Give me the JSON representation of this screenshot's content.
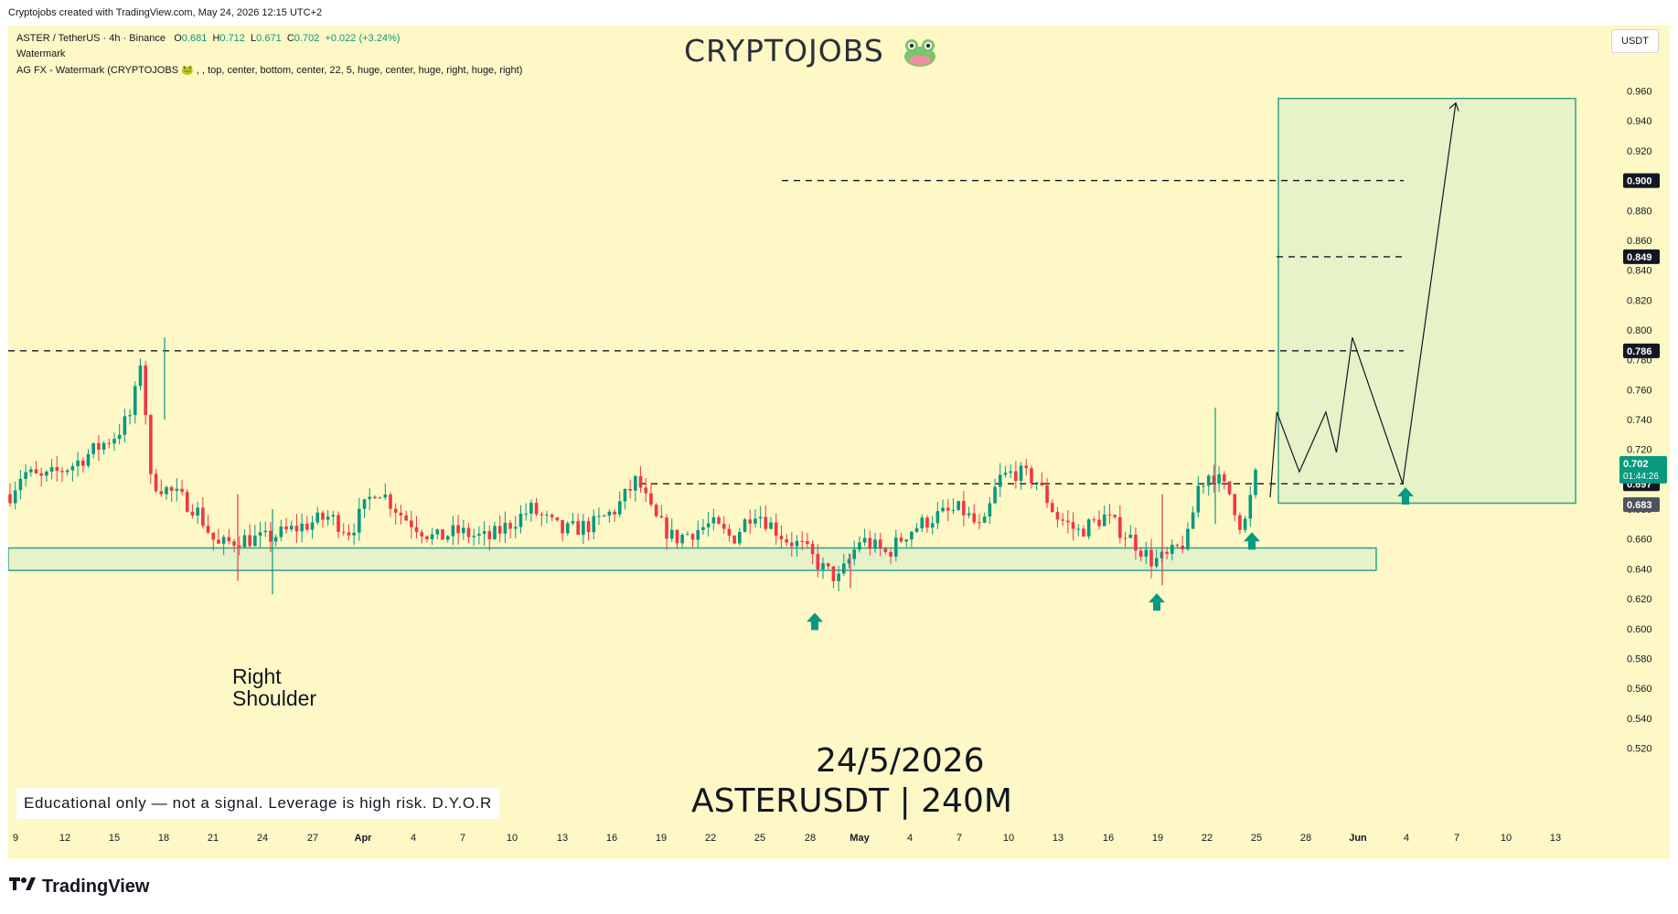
{
  "header": {
    "attribution": "Cryptojobs created with TradingView.com, May 24, 2026 12:15 UTC+2"
  },
  "legend": {
    "symbol_line": "ASTER / TetherUS · 4h · Binance",
    "open_label": "O",
    "open": "0.681",
    "high_label": "H",
    "high": "0.712",
    "low_label": "L",
    "low": "0.671",
    "close_label": "C",
    "close": "0.702",
    "change": "+0.022 (+3.24%)",
    "indicator1": "Watermark",
    "indicator2": "AG FX - Watermark (CRYPTOJOBS 🐸 , , top, center, bottom, center, 22, 5, huge, center, huge, right, huge, right)"
  },
  "watermark": {
    "title": "CRYPTOJOBS"
  },
  "currency_button": "USDT",
  "annotations": {
    "right_shoulder_line1": "Right",
    "right_shoulder_line2": "Shoulder",
    "date": "24/5/2026",
    "symbol_tf": "ASTERUSDT | 240M",
    "disclaimer": "Educational only — not a signal. Leverage is high risk. D.Y.O.R"
  },
  "price_badges": {
    "last_price": "0.702",
    "countdown": "01:44:26",
    "level_0900": "0.900",
    "level_0849": "0.849",
    "level_0786": "0.786",
    "level_0697": "0.697",
    "level_0683": "0.683"
  },
  "footer": {
    "brand": "TradingView"
  },
  "colors": {
    "background": "#fdf8c6",
    "up_candle": "#089981",
    "down_candle": "#f23645",
    "zone_fill": "#e6f2c8",
    "zone_border": "#2fa38c",
    "badge_green": "#089981",
    "badge_black": "#131722",
    "badge_gray": "#4e535e"
  },
  "chart_data": {
    "type": "candlestick",
    "symbol": "ASTERUSDT",
    "timeframe": "4h",
    "y_ticks": [
      "0.960",
      "0.940",
      "0.920",
      "0.900",
      "0.880",
      "0.860",
      "0.840",
      "0.820",
      "0.800",
      "0.780",
      "0.760",
      "0.740",
      "0.720",
      "0.700",
      "0.680",
      "0.660",
      "0.640",
      "0.620",
      "0.600",
      "0.580",
      "0.560",
      "0.540",
      "0.520"
    ],
    "ylim": [
      0.51,
      0.965
    ],
    "x_ticks": [
      "9",
      "12",
      "15",
      "18",
      "21",
      "24",
      "27",
      "Apr",
      "4",
      "7",
      "10",
      "13",
      "16",
      "19",
      "22",
      "25",
      "28",
      "May",
      "4",
      "7",
      "10",
      "13",
      "16",
      "19",
      "22",
      "25",
      "28",
      "Jun",
      "4",
      "7",
      "10",
      "13"
    ],
    "bold_x_ticks": [
      "Apr",
      "May",
      "Jun"
    ],
    "support_zone": [
      0.639,
      0.654
    ],
    "levels": [
      0.9,
      0.849,
      0.786,
      0.697
    ],
    "target_box": {
      "top": 0.955,
      "bottom": 0.684
    },
    "projection_path": [
      [
        0,
        0.688
      ],
      [
        5,
        0.745
      ],
      [
        22,
        0.705
      ],
      [
        42,
        0.745
      ],
      [
        50,
        0.718
      ],
      [
        62,
        0.795
      ],
      [
        100,
        0.697
      ],
      [
        140,
        0.952
      ]
    ],
    "price_path_keypoints": [
      [
        0,
        0.69
      ],
      [
        12,
        0.705
      ],
      [
        30,
        0.7
      ],
      [
        60,
        0.71
      ],
      [
        80,
        0.72
      ],
      [
        100,
        0.73
      ],
      [
        115,
        0.745
      ],
      [
        125,
        0.79
      ],
      [
        130,
        0.7
      ],
      [
        155,
        0.69
      ],
      [
        175,
        0.68
      ],
      [
        195,
        0.655
      ],
      [
        215,
        0.66
      ],
      [
        240,
        0.66
      ],
      [
        260,
        0.665
      ],
      [
        300,
        0.675
      ],
      [
        320,
        0.665
      ],
      [
        345,
        0.695
      ],
      [
        370,
        0.675
      ],
      [
        400,
        0.66
      ],
      [
        420,
        0.665
      ],
      [
        450,
        0.66
      ],
      [
        470,
        0.67
      ],
      [
        490,
        0.68
      ],
      [
        520,
        0.665
      ],
      [
        550,
        0.67
      ],
      [
        570,
        0.68
      ],
      [
        590,
        0.7
      ],
      [
        605,
        0.675
      ],
      [
        625,
        0.66
      ],
      [
        660,
        0.67
      ],
      [
        680,
        0.66
      ],
      [
        700,
        0.68
      ],
      [
        730,
        0.66
      ],
      [
        745,
        0.655
      ],
      [
        765,
        0.64
      ],
      [
        780,
        0.633
      ],
      [
        800,
        0.66
      ],
      [
        825,
        0.65
      ],
      [
        845,
        0.665
      ],
      [
        870,
        0.675
      ],
      [
        895,
        0.68
      ],
      [
        915,
        0.665
      ],
      [
        930,
        0.7
      ],
      [
        945,
        0.705
      ],
      [
        965,
        0.7
      ],
      [
        985,
        0.675
      ],
      [
        1005,
        0.665
      ],
      [
        1030,
        0.675
      ],
      [
        1055,
        0.66
      ],
      [
        1075,
        0.645
      ],
      [
        1090,
        0.648
      ],
      [
        1108,
        0.66
      ],
      [
        1118,
        0.695
      ],
      [
        1130,
        0.705
      ],
      [
        1148,
        0.69
      ],
      [
        1160,
        0.665
      ],
      [
        1172,
        0.702
      ]
    ],
    "arrows_up": [
      0.6045,
      0.6175,
      0.6585,
      0.6885
    ]
  }
}
